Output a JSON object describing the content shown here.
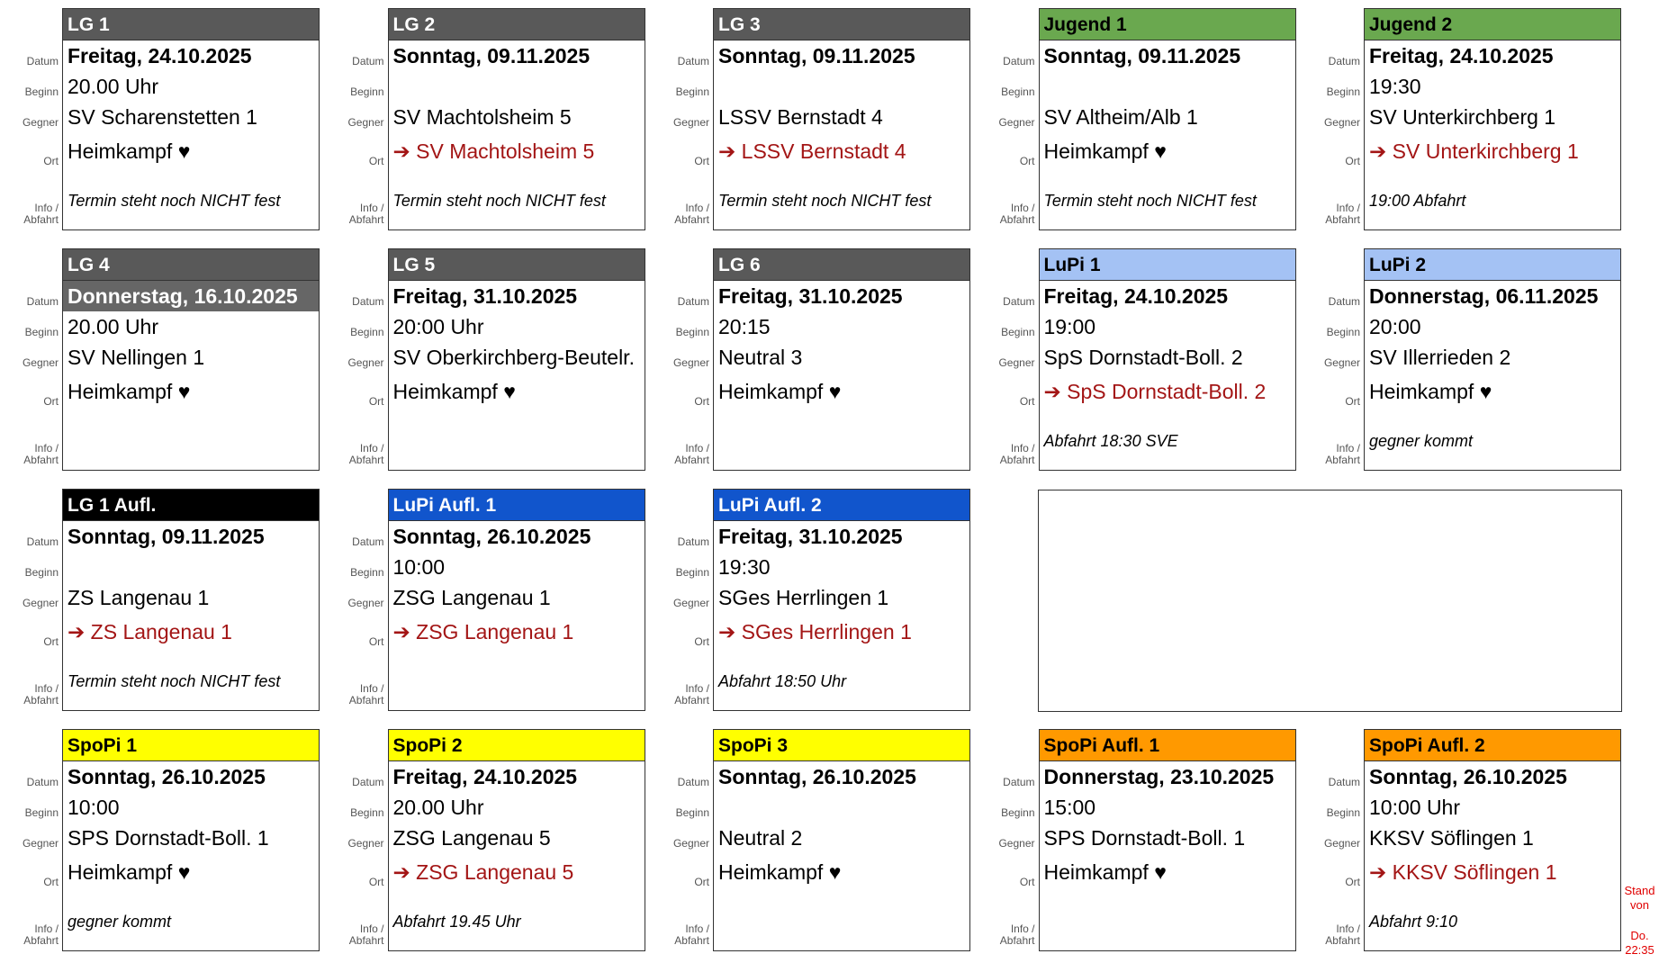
{
  "field_labels": [
    "Datum",
    "Beginn",
    "Gegner",
    "Ort",
    "Info / Abfahrt"
  ],
  "cards": [
    {
      "title": "LG 1",
      "header_color": "#595959",
      "header_text_color": "#ffffff",
      "date": "Freitag, 24.10.2025",
      "time": "20.00 Uhr",
      "opponent": "SV Scharenstetten 1",
      "location": "Heimkampf ♥",
      "location_color": "#000000",
      "info": "Termin steht noch NICHT fest"
    },
    {
      "title": "LG 2",
      "header_color": "#595959",
      "header_text_color": "#ffffff",
      "date": "Sonntag, 09.11.2025",
      "time": null,
      "opponent": "SV Machtolsheim 5",
      "location": "➔ SV Machtolsheim 5",
      "location_color": "#a31515",
      "info": "Termin steht noch NICHT fest"
    },
    {
      "title": "LG 3",
      "header_color": "#595959",
      "header_text_color": "#ffffff",
      "date": "Sonntag, 09.11.2025",
      "time": null,
      "opponent": "LSSV Bernstadt 4",
      "location": "➔ LSSV Bernstadt 4",
      "location_color": "#a31515",
      "info": "Termin steht noch NICHT fest"
    },
    {
      "title": "Jugend 1",
      "header_color": "#6aa84f",
      "header_text_color": "#000000",
      "date": "Sonntag, 09.11.2025",
      "time": null,
      "opponent": "SV Altheim/Alb 1",
      "location": "Heimkampf ♥",
      "location_color": "#000000",
      "info": "Termin steht noch NICHT fest"
    },
    {
      "title": "Jugend 2",
      "header_color": "#6aa84f",
      "header_text_color": "#000000",
      "date": "Freitag, 24.10.2025",
      "time": "19:30",
      "opponent": "SV Unterkirchberg 1",
      "location": "➔ SV Unterkirchberg 1",
      "location_color": "#a31515",
      "info": "19:00 Abfahrt"
    },
    {
      "title": "LG 4",
      "header_color": "#595959",
      "header_text_color": "#ffffff",
      "date": "Donnerstag, 16.10.2025",
      "date_background": "#666666",
      "date_color": "#ffffff",
      "time": "20.00 Uhr",
      "opponent": "SV Nellingen 1",
      "location": "Heimkampf ♥",
      "location_color": "#000000",
      "info": null
    },
    {
      "title": "LG 5",
      "header_color": "#595959",
      "header_text_color": "#ffffff",
      "date": "Freitag, 31.10.2025",
      "time": "20:00 Uhr",
      "opponent": "SV Oberkirchberg-Beutelr.",
      "location": "Heimkampf ♥",
      "location_color": "#000000",
      "info": null
    },
    {
      "title": "LG 6",
      "header_color": "#595959",
      "header_text_color": "#ffffff",
      "date": "Freitag, 31.10.2025",
      "time": "20:15",
      "opponent": "Neutral 3",
      "location": "Heimkampf ♥",
      "location_color": "#000000",
      "info": null
    },
    {
      "title": "LuPi 1",
      "header_color": "#a4c2f4",
      "header_text_color": "#000000",
      "date": "Freitag, 24.10.2025",
      "time": "19:00",
      "opponent": "SpS Dornstadt-Boll. 2",
      "location": "➔ SpS Dornstadt-Boll. 2",
      "location_color": "#a31515",
      "info": "Abfahrt 18:30 SVE"
    },
    {
      "title": "LuPi 2",
      "header_color": "#a4c2f4",
      "header_text_color": "#000000",
      "date": "Donnerstag, 06.11.2025",
      "time": "20:00",
      "opponent": "SV Illerrieden 2",
      "location": "Heimkampf ♥",
      "location_color": "#000000",
      "info": "gegner kommt"
    },
    {
      "title": "LG 1 Aufl.",
      "header_color": "#000000",
      "header_text_color": "#ffffff",
      "date": "Sonntag, 09.11.2025",
      "time": null,
      "opponent": "ZS Langenau 1",
      "location": "➔ ZS Langenau 1",
      "location_color": "#a31515",
      "info": "Termin steht noch NICHT fest"
    },
    {
      "title": "LuPi Aufl. 1",
      "header_color": "#1155cc",
      "header_text_color": "#ffffff",
      "date": "Sonntag, 26.10.2025",
      "time": "10:00",
      "opponent": "ZSG Langenau 1",
      "location": "➔ ZSG Langenau 1",
      "location_color": "#a31515",
      "info": null
    },
    {
      "title": "LuPi Aufl. 2",
      "header_color": "#1155cc",
      "header_text_color": "#ffffff",
      "date": "Freitag, 31.10.2025",
      "time": "19:30",
      "opponent": "SGes Herrlingen 1",
      "location": "➔ SGes Herrlingen 1",
      "location_color": "#a31515",
      "info": "Abfahrt 18:50 Uhr"
    },
    {
      "title": "SpoPi 1",
      "header_color": "#ffff00",
      "header_text_color": "#000000",
      "date": "Sonntag, 26.10.2025",
      "time": "10:00",
      "opponent": "SPS Dornstadt-Boll. 1",
      "location": "Heimkampf ♥",
      "location_color": "#000000",
      "info": "gegner kommt"
    },
    {
      "title": "SpoPi 2",
      "header_color": "#ffff00",
      "header_text_color": "#000000",
      "date": "Freitag, 24.10.2025",
      "time": "20.00 Uhr",
      "opponent": "ZSG Langenau 5",
      "location": "➔ ZSG Langenau 5",
      "location_color": "#a31515",
      "info": "Abfahrt 19.45 Uhr"
    },
    {
      "title": "SpoPi 3",
      "header_color": "#ffff00",
      "header_text_color": "#000000",
      "date": "Sonntag, 26.10.2025",
      "time": null,
      "opponent": "Neutral 2",
      "location": "Heimkampf ♥",
      "location_color": "#000000",
      "info": null
    },
    {
      "title": "SpoPi Aufl. 1",
      "header_color": "#ff9900",
      "header_text_color": "#000000",
      "date": "Donnerstag, 23.10.2025",
      "time": "15:00",
      "opponent": "SPS Dornstadt-Boll. 1",
      "location": "Heimkampf ♥",
      "location_color": "#000000",
      "info": null
    },
    {
      "title": "SpoPi Aufl. 2",
      "header_color": "#ff9900",
      "header_text_color": "#000000",
      "date": "Sonntag, 26.10.2025",
      "time": "10:00 Uhr",
      "opponent": "KKSV Söflingen 1",
      "location": "➔ KKSV Söflingen 1",
      "location_color": "#a31515",
      "info": "Abfahrt 9:10"
    }
  ],
  "status": {
    "label": "Stand von",
    "time": "Do. 22:35"
  }
}
